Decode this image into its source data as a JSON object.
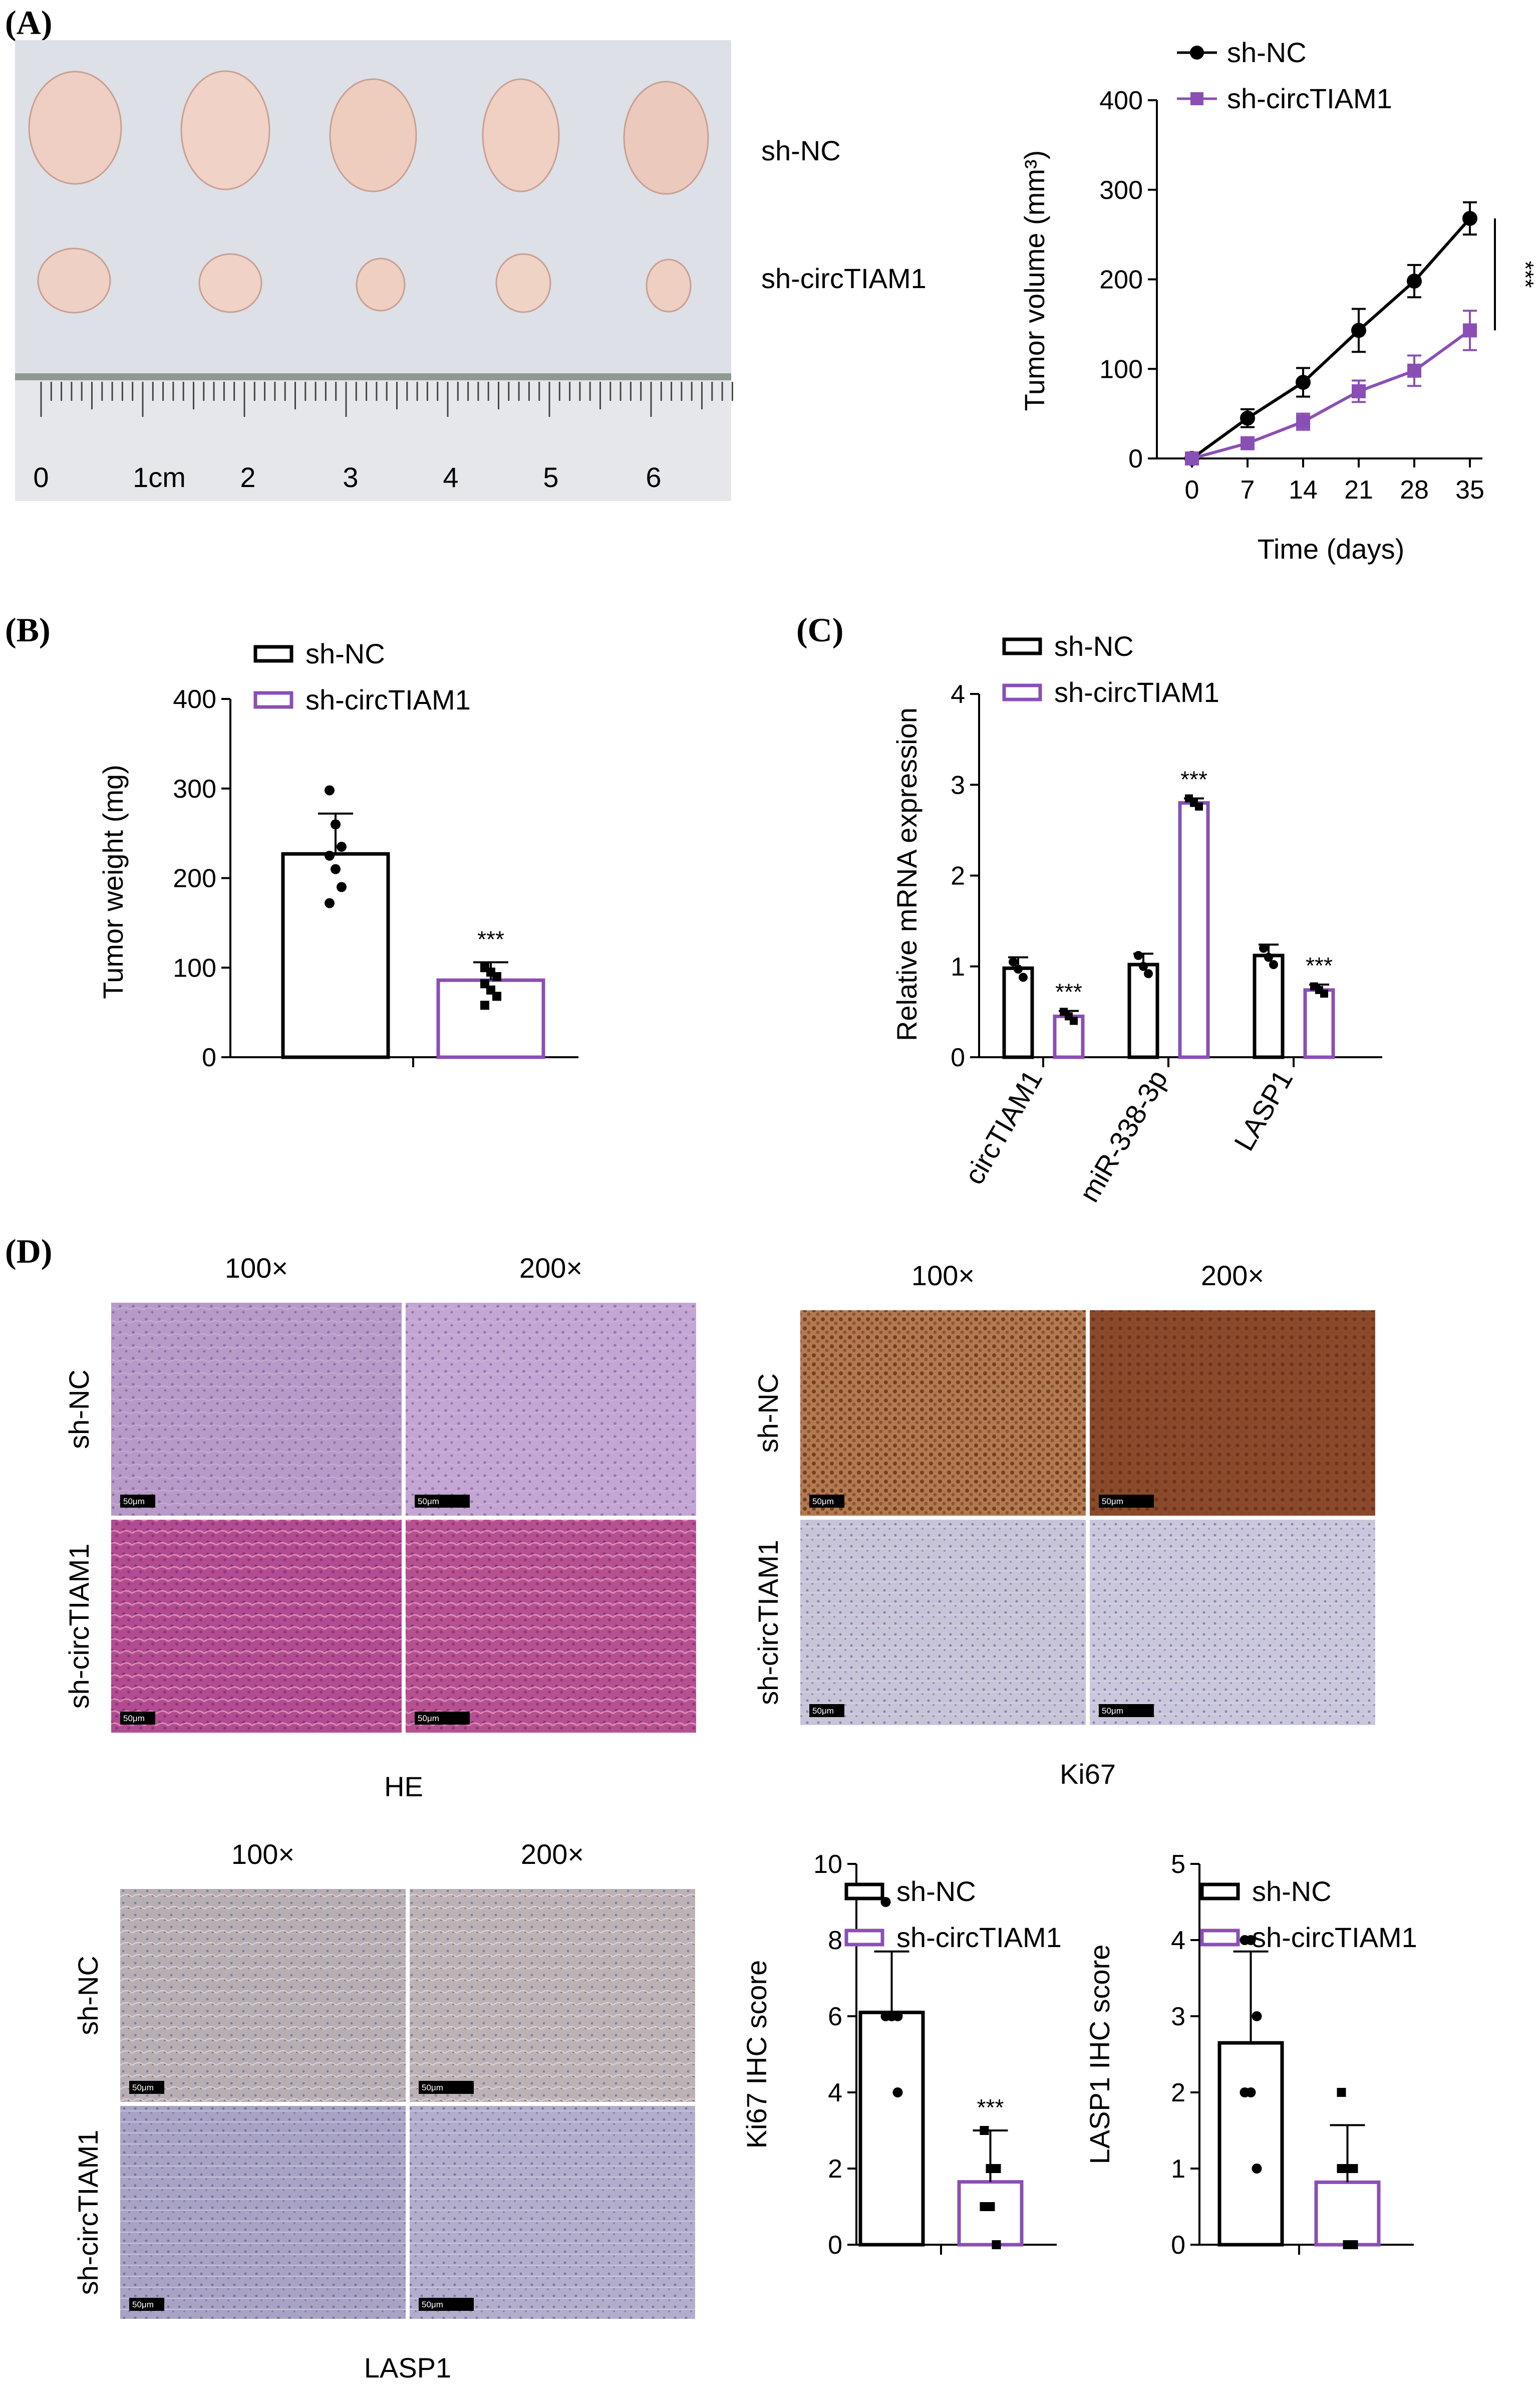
{
  "panels": {
    "a": "(A)",
    "b": "(B)",
    "c": "(C)",
    "d": "(D)"
  },
  "colors": {
    "nc": "#000000",
    "circ": "#8a4fb5",
    "he_nc": "#b79ac7",
    "he_circ": "#b24b8f",
    "ki_nc": "#8a4a2e",
    "ki_circ": "#c7c4d8",
    "lasp_nc": "#b7aeb4",
    "lasp_circ": "#a8a3c4"
  },
  "photo": {
    "row_labels": [
      "sh-NC",
      "sh-circTIAM1"
    ],
    "ruler_labels": [
      "0",
      "1cm",
      "2",
      "3",
      "4",
      "5",
      "6"
    ]
  },
  "chart_data": [
    {
      "id": "tumor-volume",
      "type": "line",
      "title": "",
      "xlabel": "Time  (days)",
      "ylabel": "Tumor volume (mm³)",
      "x": [
        0,
        7,
        14,
        21,
        28,
        35
      ],
      "xlim": [
        0,
        35
      ],
      "ylim": [
        0,
        400
      ],
      "yticks": [
        0,
        100,
        200,
        300,
        400
      ],
      "series": [
        {
          "name": "sh-NC",
          "marker": "circle",
          "color": "#000000",
          "values": [
            0,
            45,
            85,
            143,
            198,
            268
          ],
          "errors": [
            0,
            10,
            16,
            24,
            18,
            18
          ]
        },
        {
          "name": "sh-circTIAM1",
          "marker": "square",
          "color": "#8a4fb5",
          "values": [
            0,
            17,
            41,
            75,
            98,
            143
          ],
          "errors": [
            0,
            4,
            9,
            12,
            17,
            22
          ]
        }
      ],
      "significance": "***"
    },
    {
      "id": "tumor-weight",
      "type": "bar",
      "ylabel": "Tumor weight (mg)",
      "ylim": [
        0,
        400
      ],
      "yticks": [
        0,
        100,
        200,
        300,
        400
      ],
      "series": [
        {
          "name": "sh-NC",
          "value": 227,
          "error": 45,
          "points": [
            298,
            260,
            235,
            225,
            210,
            190,
            172
          ]
        },
        {
          "name": "sh-circTIAM1",
          "value": 86,
          "error": 20,
          "points": [
            100,
            95,
            90,
            82,
            75,
            68,
            58
          ]
        }
      ],
      "annotations": [
        "***"
      ]
    },
    {
      "id": "relative-mrna",
      "type": "bar",
      "ylabel": "Relative mRNA expression",
      "categories": [
        "circTIAM1",
        "miR-338-3p",
        "LASP1"
      ],
      "ylim": [
        0,
        4
      ],
      "yticks": [
        0,
        1,
        2,
        3,
        4
      ],
      "series": [
        {
          "name": "sh-NC",
          "values": [
            0.98,
            1.02,
            1.12
          ],
          "errors": [
            0.12,
            0.12,
            0.12
          ],
          "points": [
            [
              1.05,
              0.97,
              0.88
            ],
            [
              1.12,
              1.0,
              0.92
            ],
            [
              1.2,
              1.1,
              1.02
            ]
          ]
        },
        {
          "name": "sh-circTIAM1",
          "values": [
            0.45,
            2.8,
            0.74
          ],
          "errors": [
            0.06,
            0.05,
            0.06
          ],
          "points": [
            [
              0.5,
              0.45,
              0.4
            ],
            [
              2.85,
              2.8,
              2.76
            ],
            [
              0.78,
              0.74,
              0.7
            ]
          ]
        }
      ],
      "annotations": [
        "***",
        "***",
        "***"
      ]
    },
    {
      "id": "ki67-score",
      "type": "bar",
      "ylabel": "Ki67 IHC score",
      "ylim": [
        0,
        10
      ],
      "yticks": [
        0,
        2,
        4,
        6,
        8,
        10
      ],
      "series": [
        {
          "name": "sh-NC",
          "value": 6.1,
          "error": 1.6,
          "points": [
            9.0,
            6.0,
            6.0,
            6.0,
            6.0,
            4.0
          ]
        },
        {
          "name": "sh-circTIAM1",
          "value": 1.65,
          "error": 1.35,
          "points": [
            3.0,
            2.0,
            2.0,
            1.0,
            1.0,
            0.0
          ]
        }
      ],
      "annotations": [
        "***"
      ]
    },
    {
      "id": "lasp1-score",
      "type": "bar",
      "ylabel": "LASP1 IHC score",
      "ylim": [
        0,
        5
      ],
      "yticks": [
        0,
        1,
        2,
        3,
        4,
        5
      ],
      "series": [
        {
          "name": "sh-NC",
          "value": 2.65,
          "error": 1.2,
          "points": [
            4.0,
            4.0,
            3.0,
            2.0,
            2.0,
            1.0
          ]
        },
        {
          "name": "sh-circTIAM1",
          "value": 0.82,
          "error": 0.75,
          "points": [
            2.0,
            1.0,
            1.0,
            1.0,
            0.0,
            0.0
          ]
        }
      ],
      "annotations": [
        ""
      ]
    }
  ],
  "histology": [
    {
      "id": "he",
      "caption": "HE",
      "magnifications": [
        "100×",
        "200×"
      ],
      "rows": [
        "sh-NC",
        "sh-circTIAM1"
      ],
      "scalebar": "50μm"
    },
    {
      "id": "ki67",
      "caption": "Ki67",
      "magnifications": [
        "100×",
        "200×"
      ],
      "rows": [
        "sh-NC",
        "sh-circTIAM1"
      ],
      "scalebar": "50μm"
    },
    {
      "id": "lasp1",
      "caption": "LASP1",
      "magnifications": [
        "100×",
        "200×"
      ],
      "rows": [
        "sh-NC",
        "sh-circTIAM1"
      ],
      "scalebar": "50μm"
    }
  ]
}
